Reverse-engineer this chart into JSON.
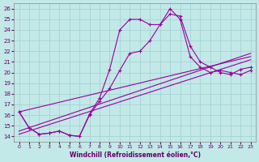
{
  "xlabel": "Windchill (Refroidissement éolien,°C)",
  "bg_color": "#c2e8e8",
  "grid_color": "#a0d0d0",
  "line_color": "#990099",
  "xlim": [
    -0.5,
    23.5
  ],
  "ylim": [
    13.5,
    26.5
  ],
  "yticks": [
    14,
    15,
    16,
    17,
    18,
    19,
    20,
    21,
    22,
    23,
    24,
    25,
    26
  ],
  "xticks": [
    0,
    1,
    2,
    3,
    4,
    5,
    6,
    7,
    8,
    9,
    10,
    11,
    12,
    13,
    14,
    15,
    16,
    17,
    18,
    19,
    20,
    21,
    22,
    23
  ],
  "curve1_x": [
    0,
    1,
    2,
    3,
    4,
    5,
    6,
    7,
    8,
    9,
    10,
    11,
    12,
    13,
    14,
    15,
    16,
    17,
    18,
    19,
    20,
    21,
    22,
    23
  ],
  "curve1_y": [
    16.3,
    14.8,
    14.2,
    14.3,
    14.5,
    14.1,
    14.0,
    16.1,
    17.6,
    20.3,
    24.0,
    25.0,
    25.0,
    24.5,
    24.5,
    25.5,
    25.3,
    22.5,
    21.0,
    20.5,
    20.0,
    19.8,
    20.3,
    20.5
  ],
  "curve2_x": [
    0,
    1,
    2,
    3,
    4,
    5,
    6,
    7,
    8,
    9,
    10,
    11,
    12,
    13,
    14,
    15,
    16,
    17,
    18,
    19,
    20,
    21,
    22,
    23
  ],
  "curve2_y": [
    16.3,
    14.8,
    14.2,
    14.3,
    14.5,
    14.1,
    14.0,
    16.0,
    17.3,
    18.5,
    20.2,
    21.8,
    22.0,
    23.0,
    24.5,
    26.0,
    25.0,
    21.5,
    20.5,
    20.0,
    20.2,
    20.0,
    19.8,
    20.2
  ],
  "trend1_x": [
    0,
    23
  ],
  "trend1_y": [
    14.2,
    21.2
  ],
  "trend2_x": [
    0,
    23
  ],
  "trend2_y": [
    14.5,
    21.8
  ],
  "trend3_x": [
    0,
    23
  ],
  "trend3_y": [
    16.3,
    21.5
  ]
}
